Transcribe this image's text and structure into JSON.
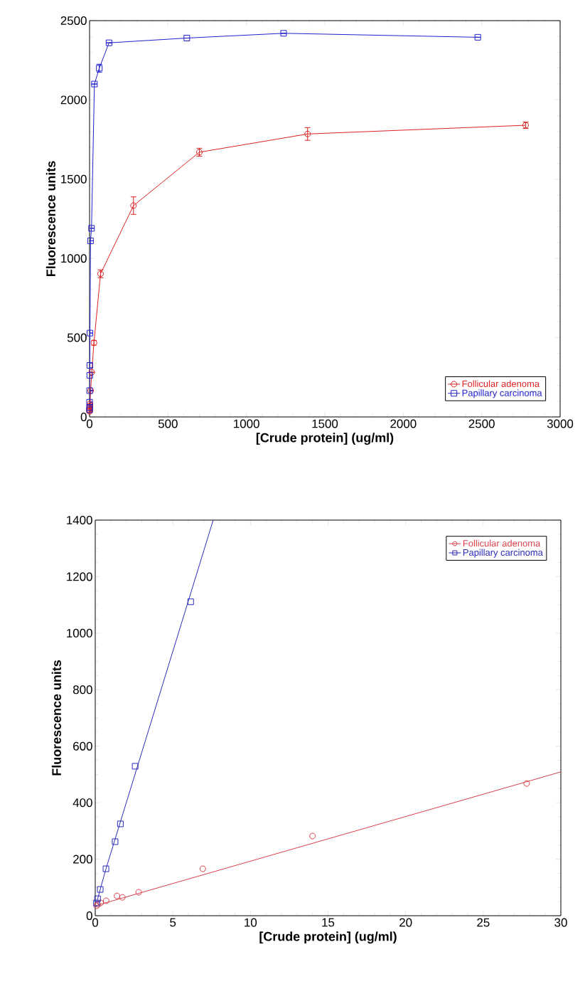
{
  "chart_data": [
    {
      "type": "line",
      "xlabel": "[Crude protein] (ug/ml)",
      "ylabel": "Fluorescence units",
      "xlim": [
        0,
        3000
      ],
      "ylim": [
        0,
        2500
      ],
      "xticks": [
        0,
        500,
        1000,
        1500,
        2000,
        2500,
        3000
      ],
      "yticks": [
        0,
        500,
        1000,
        1500,
        2000,
        2500
      ],
      "legend": "bottom right",
      "grid": false,
      "series": [
        {
          "name": "Follicular adenoma",
          "color": "#dd2222",
          "marker": "circle",
          "x": [
            0.09,
            0.17,
            0.35,
            0.7,
            1.4,
            1.75,
            2.8,
            7,
            14,
            28,
            70,
            280,
            700,
            1390,
            2780
          ],
          "values": [
            35,
            40,
            45,
            53,
            70,
            65,
            83,
            166,
            282,
            468,
            903,
            1333,
            1670,
            1785,
            1840
          ],
          "errors": [
            null,
            null,
            null,
            null,
            null,
            null,
            null,
            null,
            null,
            15,
            25,
            55,
            25,
            40,
            20
          ]
        },
        {
          "name": "Papillary carcinoma",
          "color": "#2020cc",
          "marker": "square",
          "x": [
            0.08,
            0.15,
            0.32,
            0.69,
            1.28,
            1.62,
            2.57,
            6.15,
            12.4,
            31,
            62,
            124,
            620,
            1237,
            2475
          ],
          "values": [
            45,
            60,
            93,
            166,
            262,
            325,
            529,
            1111,
            1190,
            2100,
            2200,
            2360,
            2390,
            2420,
            2395
          ],
          "errors": [
            null,
            null,
            null,
            null,
            null,
            15,
            null,
            null,
            null,
            null,
            25,
            null,
            null,
            null,
            null
          ]
        }
      ]
    },
    {
      "type": "scatter",
      "xlabel": "[Crude protein] (ug/ml)",
      "ylabel": "Fluorescence units",
      "xlim": [
        0,
        30
      ],
      "ylim": [
        0,
        1400
      ],
      "xticks": [
        0,
        5,
        10,
        15,
        20,
        25,
        30
      ],
      "yticks": [
        0,
        200,
        400,
        600,
        800,
        1000,
        1200,
        1400
      ],
      "legend": "top right",
      "grid": false,
      "series": [
        {
          "name": "Follicular adenoma",
          "color": "#d9404a",
          "marker": "circle",
          "x": [
            0.09,
            0.17,
            0.35,
            0.7,
            1.4,
            1.75,
            2.8,
            6.93,
            14.0,
            27.8
          ],
          "values": [
            35,
            40,
            45,
            53,
            70,
            65,
            83,
            166,
            282,
            468
          ]
        },
        {
          "name": "Papillary carcinoma",
          "color": "#2a2ab8",
          "marker": "square",
          "x": [
            0.08,
            0.15,
            0.32,
            0.69,
            1.28,
            1.62,
            2.57,
            6.15
          ],
          "values": [
            45,
            60,
            93,
            166,
            262,
            325,
            529,
            1111
          ]
        },
        {
          "type": "line",
          "color": "#d9404a",
          "marker": "none",
          "x": [
            0,
            30
          ],
          "values": [
            35,
            509
          ]
        },
        {
          "type": "line",
          "color": "#2a2ab8",
          "marker": "none",
          "x": [
            0.08,
            0.32,
            0.69,
            7.6
          ],
          "values": [
            45,
            93,
            166,
            1400
          ]
        }
      ]
    }
  ]
}
